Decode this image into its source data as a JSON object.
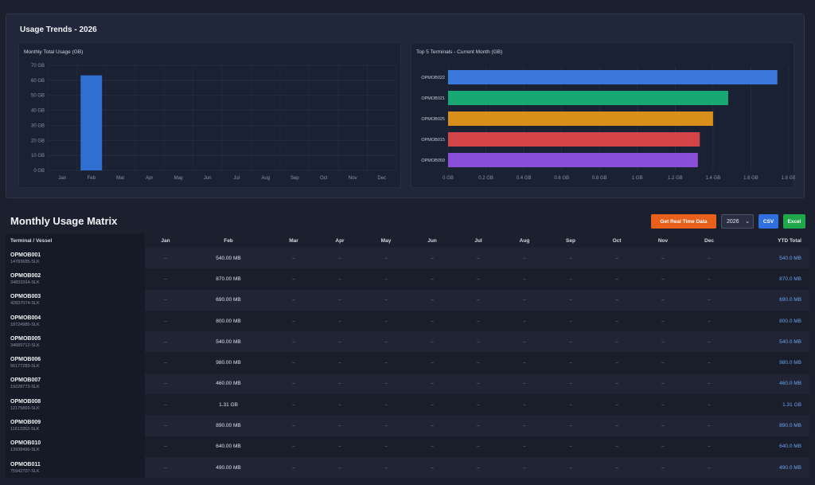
{
  "trends": {
    "title": "Usage Trends - 2026"
  },
  "chart_data": [
    {
      "type": "bar",
      "title": "Monthly Total Usage (GB)",
      "categories": [
        "Jan",
        "Feb",
        "Mar",
        "Apr",
        "May",
        "Jun",
        "Jul",
        "Aug",
        "Sep",
        "Oct",
        "Nov",
        "Dec"
      ],
      "values": [
        0,
        63.3,
        0,
        0,
        0,
        0,
        0,
        0,
        0,
        0,
        0,
        0
      ],
      "ylim": [
        0,
        70
      ],
      "yticks": [
        "0 GB",
        "10 GB",
        "20 GB",
        "30 GB",
        "40 GB",
        "50 GB",
        "60 GB",
        "70 GB"
      ],
      "grid": true,
      "color": "#2f6fd0"
    },
    {
      "type": "bar",
      "orientation": "horizontal",
      "title": "Top 5 Terminals - Current Month (GB)",
      "categories": [
        "OPMOB022",
        "OPMOB021",
        "OPMOB025",
        "OPMOB015",
        "OPMOB059"
      ],
      "values": [
        1.74,
        1.48,
        1.4,
        1.33,
        1.32
      ],
      "xlim": [
        0,
        1.8
      ],
      "xticks": [
        "0 GB",
        "0.2 GB",
        "0.4 GB",
        "0.6 GB",
        "0.8 GB",
        "1 GB",
        "1.2 GB",
        "1.4 GB",
        "1.6 GB",
        "1.8 GB"
      ],
      "grid": true,
      "colors": [
        "#3a78dc",
        "#18a874",
        "#d9901a",
        "#d24448",
        "#8a4fd8"
      ]
    }
  ],
  "matrix": {
    "title": "Monthly Usage Matrix",
    "realtime_label": "Get Real Time Data",
    "year": "2026",
    "csv_label": "CSV",
    "excel_label": "Excel",
    "columns": [
      "Terminal / Vessel",
      "Jan",
      "Feb",
      "Mar",
      "Apr",
      "May",
      "Jun",
      "Jul",
      "Aug",
      "Sep",
      "Oct",
      "Nov",
      "Dec",
      "YTD Total"
    ],
    "rows": [
      {
        "name": "OPMOB001",
        "sub": "14783685-SLK",
        "months": [
          "–",
          "540.00 MB",
          "–",
          "–",
          "–",
          "–",
          "–",
          "–",
          "–",
          "–",
          "–",
          "–"
        ],
        "ytd": "540.0 MB"
      },
      {
        "name": "OPMOB002",
        "sub": "34833264-SLK",
        "months": [
          "–",
          "870.00 MB",
          "–",
          "–",
          "–",
          "–",
          "–",
          "–",
          "–",
          "–",
          "–",
          "–"
        ],
        "ytd": "870.0 MB"
      },
      {
        "name": "OPMOB003",
        "sub": "42837074-SLK",
        "months": [
          "–",
          "690.00 MB",
          "–",
          "–",
          "–",
          "–",
          "–",
          "–",
          "–",
          "–",
          "–",
          "–"
        ],
        "ytd": "690.0 MB"
      },
      {
        "name": "OPMOB004",
        "sub": "18724985-SLK",
        "months": [
          "–",
          "800.00 MB",
          "–",
          "–",
          "–",
          "–",
          "–",
          "–",
          "–",
          "–",
          "–",
          "–"
        ],
        "ytd": "800.0 MB"
      },
      {
        "name": "OPMOB005",
        "sub": "34689712-SLK",
        "months": [
          "–",
          "540.00 MB",
          "–",
          "–",
          "–",
          "–",
          "–",
          "–",
          "–",
          "–",
          "–",
          "–"
        ],
        "ytd": "540.0 MB"
      },
      {
        "name": "OPMOB006",
        "sub": "56177283-SLK",
        "months": [
          "–",
          "980.00 MB",
          "–",
          "–",
          "–",
          "–",
          "–",
          "–",
          "–",
          "–",
          "–",
          "–"
        ],
        "ytd": "980.0 MB"
      },
      {
        "name": "OPMOB007",
        "sub": "19228773-SLK",
        "months": [
          "–",
          "460.00 MB",
          "–",
          "–",
          "–",
          "–",
          "–",
          "–",
          "–",
          "–",
          "–",
          "–"
        ],
        "ytd": "460.0 MB"
      },
      {
        "name": "OPMOB008",
        "sub": "12175869-SLK",
        "months": [
          "–",
          "1.31 GB",
          "–",
          "–",
          "–",
          "–",
          "–",
          "–",
          "–",
          "–",
          "–",
          "–"
        ],
        "ytd": "1.31 GB"
      },
      {
        "name": "OPMOB009",
        "sub": "11613353-SLK",
        "months": [
          "–",
          "890.00 MB",
          "–",
          "–",
          "–",
          "–",
          "–",
          "–",
          "–",
          "–",
          "–",
          "–"
        ],
        "ytd": "890.0 MB"
      },
      {
        "name": "OPMOB010",
        "sub": "13938496-SLK",
        "months": [
          "–",
          "640.00 MB",
          "–",
          "–",
          "–",
          "–",
          "–",
          "–",
          "–",
          "–",
          "–",
          "–"
        ],
        "ytd": "640.0 MB"
      },
      {
        "name": "OPMOB011",
        "sub": "75942707-SLK",
        "months": [
          "–",
          "490.00 MB",
          "–",
          "–",
          "–",
          "–",
          "–",
          "–",
          "–",
          "–",
          "–",
          "–"
        ],
        "ytd": "490.0 MB"
      }
    ]
  }
}
